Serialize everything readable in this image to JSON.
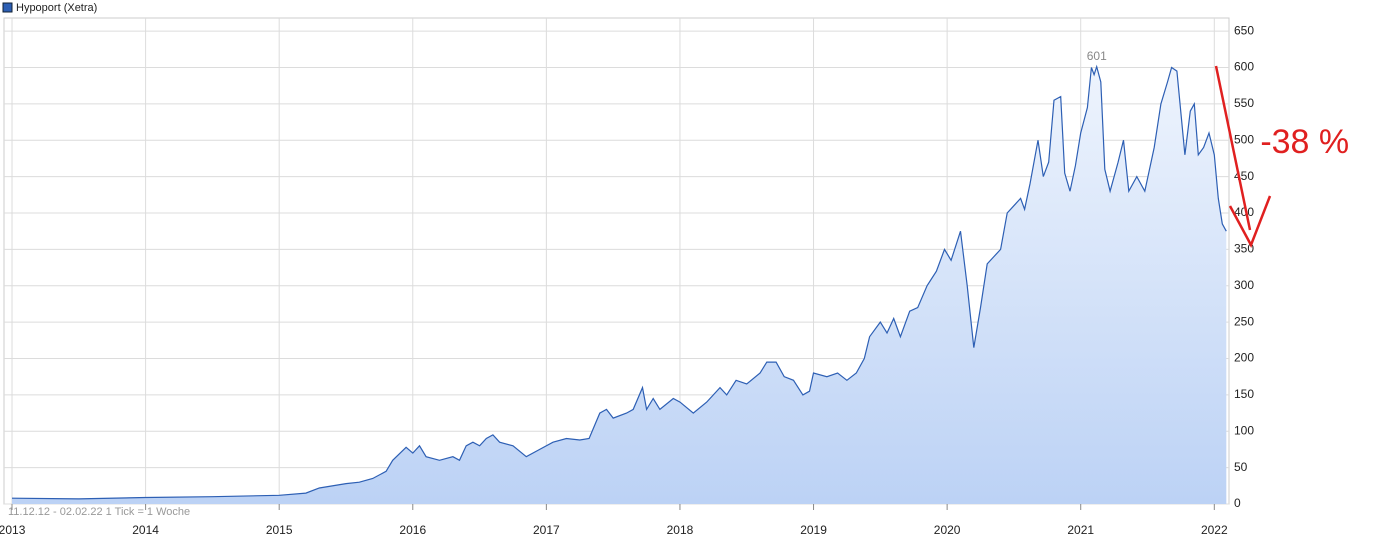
{
  "chart_data": {
    "type": "area-line",
    "legend": "Hypoport (Xetra)",
    "footnote": "11.12.12 - 02.02.22   1 Tick = 1 Woche",
    "color": "#2d5fb4",
    "series": [
      {
        "name": "Hypoport (Xetra)",
        "color": "#2d5fb4",
        "x": [
          2013.0,
          2013.5,
          2014.0,
          2014.5,
          2015.0,
          2015.2,
          2015.3,
          2015.5,
          2015.6,
          2015.7,
          2015.8,
          2015.85,
          2015.95,
          2016.0,
          2016.05,
          2016.1,
          2016.2,
          2016.3,
          2016.35,
          2016.4,
          2016.45,
          2016.5,
          2016.55,
          2016.6,
          2016.65,
          2016.75,
          2016.85,
          2016.95,
          2017.05,
          2017.15,
          2017.25,
          2017.32,
          2017.4,
          2017.45,
          2017.5,
          2017.6,
          2017.65,
          2017.72,
          2017.75,
          2017.8,
          2017.85,
          2017.95,
          2018.0,
          2018.1,
          2018.2,
          2018.3,
          2018.35,
          2018.42,
          2018.5,
          2018.6,
          2018.65,
          2018.72,
          2018.78,
          2018.85,
          2018.92,
          2018.97,
          2019.0,
          2019.1,
          2019.18,
          2019.25,
          2019.32,
          2019.38,
          2019.42,
          2019.5,
          2019.55,
          2019.6,
          2019.65,
          2019.72,
          2019.78,
          2019.85,
          2019.92,
          2019.98,
          2020.03,
          2020.1,
          2020.15,
          2020.2,
          2020.25,
          2020.3,
          2020.35,
          2020.4,
          2020.45,
          2020.5,
          2020.55,
          2020.58,
          2020.62,
          2020.68,
          2020.72,
          2020.76,
          2020.8,
          2020.85,
          2020.88,
          2020.92,
          2020.96,
          2021.0,
          2021.05,
          2021.08,
          2021.1,
          2021.12,
          2021.15,
          2021.18,
          2021.22,
          2021.28,
          2021.32,
          2021.36,
          2021.42,
          2021.48,
          2021.55,
          2021.6,
          2021.65,
          2021.68,
          2021.72,
          2021.78,
          2021.82,
          2021.85,
          2021.88,
          2021.92,
          2021.96,
          2022.0,
          2022.03,
          2022.06,
          2022.09
        ],
        "values": [
          8,
          7,
          9,
          10,
          12,
          15,
          22,
          28,
          30,
          35,
          45,
          60,
          78,
          70,
          80,
          65,
          60,
          65,
          60,
          80,
          85,
          80,
          90,
          95,
          85,
          80,
          65,
          75,
          85,
          90,
          88,
          90,
          125,
          130,
          118,
          125,
          130,
          160,
          130,
          145,
          130,
          145,
          140,
          125,
          140,
          160,
          150,
          170,
          165,
          180,
          195,
          195,
          175,
          170,
          150,
          155,
          180,
          175,
          180,
          170,
          180,
          200,
          230,
          250,
          235,
          255,
          230,
          265,
          270,
          300,
          320,
          350,
          335,
          375,
          300,
          215,
          270,
          330,
          340,
          350,
          400,
          410,
          420,
          405,
          440,
          500,
          450,
          470,
          555,
          560,
          455,
          430,
          465,
          510,
          545,
          600,
          590,
          601,
          580,
          460,
          430,
          470,
          500,
          430,
          450,
          430,
          490,
          550,
          580,
          600,
          595,
          480,
          540,
          550,
          480,
          490,
          510,
          480,
          420,
          385,
          375
        ]
      }
    ],
    "xlim": [
      2012.94,
      2022.11
    ],
    "xticks": [
      2013,
      2014,
      2015,
      2016,
      2017,
      2018,
      2019,
      2020,
      2021,
      2022
    ],
    "ylim": [
      0,
      668
    ],
    "yticks": [
      0,
      50,
      100,
      150,
      200,
      250,
      300,
      350,
      400,
      450,
      500,
      550,
      600,
      650
    ],
    "grid": true,
    "annotations": [
      {
        "text": "601",
        "x": 2021.12,
        "y": 601,
        "color": "#888888"
      },
      {
        "text": "-38 %",
        "x": 2022.12,
        "y": 495,
        "color": "#e02020"
      }
    ]
  }
}
